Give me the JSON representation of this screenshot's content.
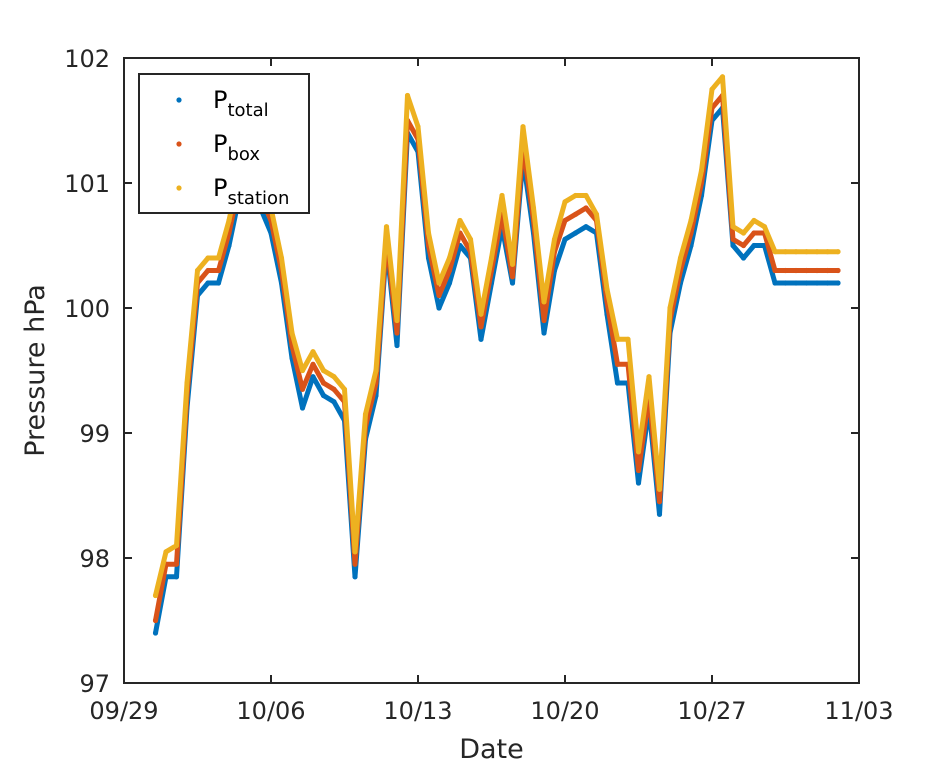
{
  "chart_data": {
    "type": "scatter",
    "title": "",
    "xlabel": "Date",
    "ylabel": "Pressure hPa",
    "xlim": [
      "2023-09-29",
      "2023-11-03"
    ],
    "ylim": [
      97,
      102
    ],
    "xticks": [
      "09/29",
      "10/06",
      "10/13",
      "10/20",
      "10/27",
      "11/03"
    ],
    "yticks": [
      "97",
      "98",
      "99",
      "100",
      "101",
      "102"
    ],
    "grid": false,
    "legend_position": "top-left",
    "x": [
      "2023-09-30T12:00",
      "2023-10-01T00:00",
      "2023-10-01T12:00",
      "2023-10-02T00:00",
      "2023-10-02T12:00",
      "2023-10-03T00:00",
      "2023-10-03T12:00",
      "2023-10-04T00:00",
      "2023-10-04T12:00",
      "2023-10-05T00:00",
      "2023-10-05T12:00",
      "2023-10-06T00:00",
      "2023-10-06T12:00",
      "2023-10-07T00:00",
      "2023-10-07T12:00",
      "2023-10-08T00:00",
      "2023-10-08T12:00",
      "2023-10-09T00:00",
      "2023-10-09T12:00",
      "2023-10-10T00:00",
      "2023-10-10T12:00",
      "2023-10-11T00:00",
      "2023-10-11T12:00",
      "2023-10-12T00:00",
      "2023-10-12T12:00",
      "2023-10-13T00:00",
      "2023-10-13T12:00",
      "2023-10-14T00:00",
      "2023-10-14T12:00",
      "2023-10-15T00:00",
      "2023-10-15T12:00",
      "2023-10-16T00:00",
      "2023-10-16T12:00",
      "2023-10-17T00:00",
      "2023-10-17T12:00",
      "2023-10-18T00:00",
      "2023-10-18T12:00",
      "2023-10-19T00:00",
      "2023-10-19T12:00",
      "2023-10-20T00:00",
      "2023-10-20T12:00",
      "2023-10-21T00:00",
      "2023-10-21T12:00",
      "2023-10-22T00:00",
      "2023-10-22T12:00",
      "2023-10-23T00:00",
      "2023-10-23T12:00",
      "2023-10-24T00:00",
      "2023-10-24T12:00",
      "2023-10-25T00:00",
      "2023-10-25T12:00",
      "2023-10-26T00:00",
      "2023-10-26T12:00",
      "2023-10-27T00:00",
      "2023-10-27T12:00",
      "2023-10-28T00:00",
      "2023-10-28T12:00",
      "2023-10-29T00:00",
      "2023-10-29T12:00",
      "2023-10-30T00:00",
      "2023-10-30T12:00",
      "2023-10-31T00:00",
      "2023-10-31T12:00",
      "2023-11-01T00:00",
      "2023-11-01T12:00",
      "2023-11-02T00:00"
    ],
    "series": [
      {
        "name": "P_total",
        "label_main": "P",
        "label_sub": "total",
        "color": "#0072BD",
        "values": [
          97.4,
          97.85,
          97.85,
          99.2,
          100.1,
          100.2,
          100.2,
          100.5,
          100.9,
          100.9,
          100.8,
          100.6,
          100.2,
          99.6,
          99.2,
          99.45,
          99.3,
          99.25,
          99.1,
          97.85,
          98.95,
          99.3,
          100.5,
          99.7,
          101.4,
          101.25,
          100.4,
          100.0,
          100.2,
          100.5,
          100.4,
          99.75,
          100.2,
          100.65,
          100.2,
          101.2,
          100.6,
          99.8,
          100.3,
          100.55,
          100.6,
          100.65,
          100.6,
          99.95,
          99.4,
          99.4,
          98.6,
          99.2,
          98.35,
          99.8,
          100.2,
          100.5,
          100.9,
          101.5,
          101.6,
          100.5,
          100.4,
          100.5,
          100.5,
          100.2,
          100.2,
          100.2,
          100.2,
          100.2,
          100.2,
          100.2
        ]
      },
      {
        "name": "P_box",
        "label_main": "P",
        "label_sub": "box",
        "color": "#D95319",
        "values": [
          97.5,
          97.95,
          97.95,
          99.3,
          100.2,
          100.3,
          100.3,
          100.6,
          101.0,
          101.0,
          100.9,
          100.7,
          100.3,
          99.7,
          99.35,
          99.55,
          99.4,
          99.35,
          99.25,
          97.95,
          99.05,
          99.4,
          100.55,
          99.8,
          101.5,
          101.35,
          100.5,
          100.1,
          100.3,
          100.6,
          100.45,
          99.85,
          100.3,
          100.75,
          100.25,
          101.3,
          100.7,
          99.9,
          100.45,
          100.7,
          100.75,
          100.8,
          100.7,
          100.05,
          99.55,
          99.55,
          98.7,
          99.3,
          98.45,
          99.9,
          100.3,
          100.6,
          101.0,
          101.6,
          101.7,
          100.55,
          100.5,
          100.6,
          100.6,
          100.3,
          100.3,
          100.3,
          100.3,
          100.3,
          100.3,
          100.3
        ]
      },
      {
        "name": "P_station",
        "label_main": "P",
        "label_sub": "station",
        "color": "#EDB120",
        "values": [
          97.7,
          98.05,
          98.1,
          99.4,
          100.3,
          100.4,
          100.4,
          100.7,
          101.1,
          101.05,
          101.0,
          100.8,
          100.4,
          99.8,
          99.5,
          99.65,
          99.5,
          99.45,
          99.35,
          98.05,
          99.15,
          99.5,
          100.65,
          99.9,
          101.7,
          101.45,
          100.6,
          100.2,
          100.4,
          100.7,
          100.55,
          99.95,
          100.4,
          100.9,
          100.35,
          101.45,
          100.8,
          100.05,
          100.55,
          100.85,
          100.9,
          100.9,
          100.75,
          100.15,
          99.75,
          99.75,
          98.85,
          99.45,
          98.55,
          100.0,
          100.4,
          100.7,
          101.1,
          101.75,
          101.85,
          100.65,
          100.6,
          100.7,
          100.65,
          100.45,
          100.45,
          100.45,
          100.45,
          100.45,
          100.45,
          100.45
        ]
      }
    ]
  }
}
